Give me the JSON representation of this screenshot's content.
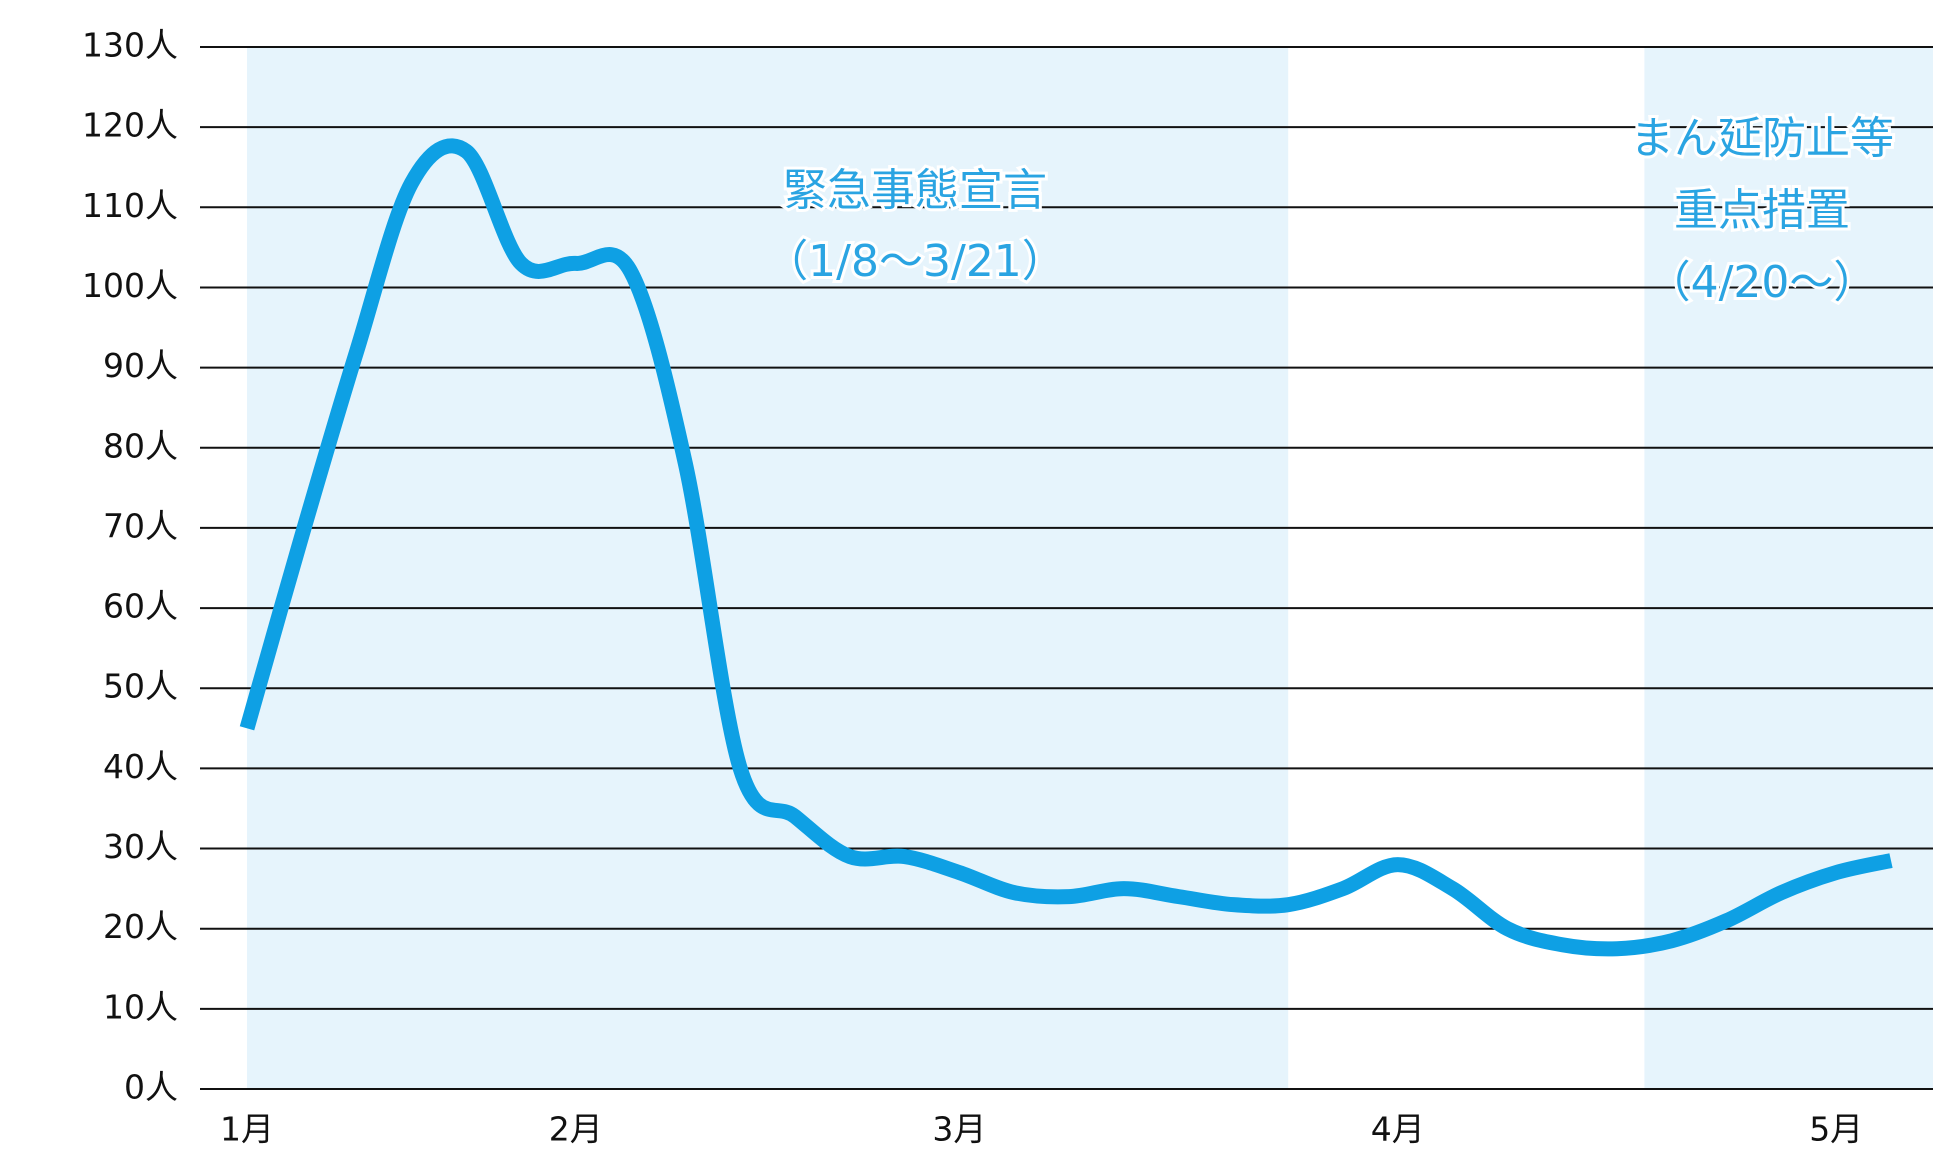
{
  "chart_data": {
    "type": "line",
    "categories": [
      "1月",
      null,
      null,
      null,
      null,
      null,
      "2月",
      null,
      null,
      null,
      null,
      null,
      null,
      "3月",
      null,
      null,
      null,
      null,
      null,
      null,
      null,
      "4月",
      null,
      null,
      null,
      null,
      null,
      null,
      null,
      "5月",
      null
    ],
    "series": [
      {
        "color": "#0ea0e4",
        "values": [
          45,
          69,
          92,
          113,
          117,
          103,
          103,
          102,
          78,
          40,
          34,
          29,
          29,
          27,
          24.5,
          24,
          25,
          24,
          23,
          23,
          25,
          28,
          25,
          20,
          18,
          17.5,
          18.5,
          21,
          24.5,
          27,
          28.5
        ]
      }
    ],
    "ylim": [
      0,
      130
    ],
    "yticks": [
      {
        "value": 0,
        "label": "0人"
      },
      {
        "value": 10,
        "label": "10人"
      },
      {
        "value": 20,
        "label": "20人"
      },
      {
        "value": 30,
        "label": "30人"
      },
      {
        "value": 40,
        "label": "40人"
      },
      {
        "value": 50,
        "label": "50人"
      },
      {
        "value": 60,
        "label": "60人"
      },
      {
        "value": 70,
        "label": "70人"
      },
      {
        "value": 80,
        "label": "80人"
      },
      {
        "value": 90,
        "label": "90人"
      },
      {
        "value": 100,
        "label": "100人"
      },
      {
        "value": 110,
        "label": "110人"
      },
      {
        "value": 120,
        "label": "120人"
      },
      {
        "value": 130,
        "label": "130人"
      }
    ],
    "grid": true,
    "periods": [
      {
        "lines": [
          "緊急事態宣言",
          "（1/8～3/21）"
        ],
        "start": 0,
        "end": 19,
        "color": "#e6f4fc"
      },
      {
        "lines": [
          "まん延防止等",
          "重点措置",
          "（4/20～）"
        ],
        "start": 25.5,
        "end": null,
        "color": "#e6f4fc"
      }
    ]
  }
}
